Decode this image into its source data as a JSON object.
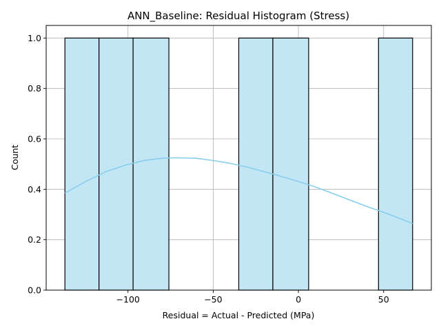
{
  "chart_data": {
    "type": "bar",
    "title": "ANN_Baseline: Residual Histogram (Stress)",
    "xlabel": "Residual = Actual - Predicted (MPa)",
    "ylabel": "Count",
    "xlim": [
      -148,
      78
    ],
    "ylim": [
      0,
      1.05
    ],
    "grid": true,
    "bins": [
      {
        "x0": -137,
        "x1": -117,
        "count": 1
      },
      {
        "x0": -117,
        "x1": -97,
        "count": 1
      },
      {
        "x0": -97,
        "x1": -76,
        "count": 1
      },
      {
        "x0": -76,
        "x1": -56,
        "count": 0
      },
      {
        "x0": -56,
        "x1": -35,
        "count": 0
      },
      {
        "x0": -35,
        "x1": -15,
        "count": 1
      },
      {
        "x0": -15,
        "x1": 6,
        "count": 1
      },
      {
        "x0": 6,
        "x1": 26,
        "count": 0
      },
      {
        "x0": 26,
        "x1": 47,
        "count": 0
      },
      {
        "x0": 47,
        "x1": 67,
        "count": 1
      }
    ],
    "kde": {
      "x": [
        -137,
        -125,
        -113,
        -101,
        -90,
        -80,
        -72,
        -60,
        -50,
        -40,
        -30,
        -20,
        -10,
        0,
        10,
        20,
        30,
        40,
        50,
        60,
        67
      ],
      "y": [
        0.385,
        0.43,
        0.47,
        0.497,
        0.515,
        0.523,
        0.525,
        0.523,
        0.514,
        0.503,
        0.488,
        0.47,
        0.451,
        0.431,
        0.409,
        0.384,
        0.358,
        0.332,
        0.309,
        0.283,
        0.264
      ]
    },
    "x_ticks": [
      {
        "value": -100,
        "label": "−100"
      },
      {
        "value": -50,
        "label": "−50"
      },
      {
        "value": 0,
        "label": "0"
      },
      {
        "value": 50,
        "label": "50"
      }
    ],
    "y_ticks": [
      {
        "value": 0.0,
        "label": "0.0"
      },
      {
        "value": 0.2,
        "label": "0.2"
      },
      {
        "value": 0.4,
        "label": "0.4"
      },
      {
        "value": 0.6,
        "label": "0.6"
      },
      {
        "value": 0.8,
        "label": "0.8"
      },
      {
        "value": 1.0,
        "label": "1.0"
      }
    ],
    "colors": {
      "bar_fill": "#c3e6f4",
      "bar_edge": "#000000",
      "kde_line": "#87ceeb",
      "grid": "#b0b0b0"
    }
  }
}
